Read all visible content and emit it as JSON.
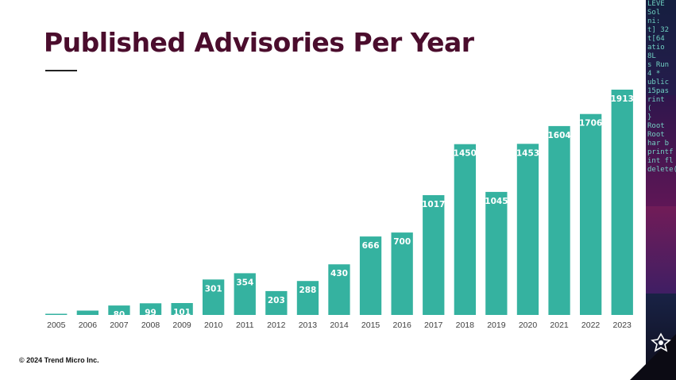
{
  "title": "Published Advisories Per Year",
  "footer": {
    "copyright": "© 2024 Trend Micro Inc."
  },
  "colors": {
    "title": "#4b0d2d",
    "bar": "#35b2a0",
    "bar_label": "#ffffff",
    "axis_text": "#404040",
    "strip_background": "#0c0b14"
  },
  "side_strip": {
    "code_lines": [
      "LEVE",
      "Sol",
      "ni:",
      "t] 32",
      "t[64",
      "atio",
      "8L",
      "s Run",
      "4 *",
      "ublic",
      "15pas",
      "rint",
      "(",
      "}",
      "Root",
      "Root",
      "har b",
      "printf",
      "int fl",
      "delete("
    ]
  },
  "chart_data": {
    "type": "bar",
    "title": "Published Advisories Per Year",
    "xlabel": "",
    "ylabel": "",
    "grid": false,
    "legend": "none",
    "ylim": [
      0,
      1913
    ],
    "categories": [
      "2005",
      "2006",
      "2007",
      "2008",
      "2009",
      "2010",
      "2011",
      "2012",
      "2013",
      "2014",
      "2015",
      "2016",
      "2017",
      "2018",
      "2019",
      "2020",
      "2021",
      "2022",
      "2023"
    ],
    "values": [
      1,
      37,
      80,
      99,
      101,
      301,
      354,
      203,
      288,
      430,
      666,
      700,
      1017,
      1450,
      1045,
      1453,
      1604,
      1706,
      1913
    ],
    "data_labels": [
      "",
      "",
      "80",
      "99",
      "101",
      "301",
      "354",
      "203",
      "288",
      "430",
      "666",
      "700",
      "1017",
      "1450",
      "1045",
      "1453",
      "1604",
      "1706",
      "1913"
    ]
  }
}
